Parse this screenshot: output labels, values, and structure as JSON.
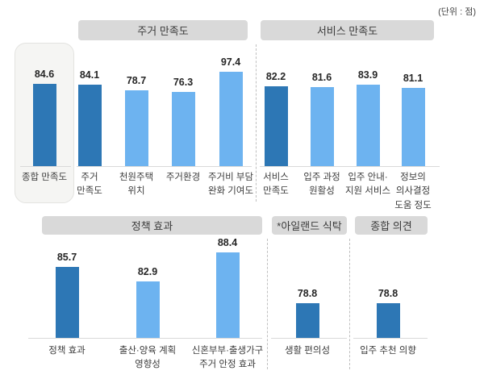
{
  "unit_note": "(단위 : 점)",
  "colors": {
    "bar_dark": "#2d77b5",
    "bar_light": "#6db3f0",
    "header_bg": "#d9d9d9",
    "header_text": "#3b3b3b",
    "baseline": "#d9d9d9",
    "dashed_separator": "#c0c0c0",
    "highlight_bg": "#f5f5f3",
    "highlight_border": "#e3e3e0"
  },
  "chart_data": {
    "type": "bar",
    "title": "",
    "unit": "(단위 : 점)",
    "grid": false,
    "axes_visible": false,
    "value_labels_position": "above-bars",
    "rows": [
      {
        "groups": [
          {
            "header": "",
            "highlighted": true,
            "bars": [
              {
                "label": "종합 만족도",
                "value": 84.6,
                "emphasis": true
              }
            ]
          },
          {
            "header": "주거 만족도",
            "bars": [
              {
                "label": "주거\n만족도",
                "value": 84.1,
                "emphasis": true
              },
              {
                "label": "천원주택\n위치",
                "value": 78.7,
                "emphasis": false
              },
              {
                "label": "주거환경",
                "value": 76.3,
                "emphasis": false
              },
              {
                "label": "주거비 부담\n완화 기여도",
                "value": 97.4,
                "emphasis": false
              }
            ]
          },
          {
            "header": "서비스 만족도",
            "bars": [
              {
                "label": "서비스\n만족도",
                "value": 82.2,
                "emphasis": true
              },
              {
                "label": "입주 과정\n원활성",
                "value": 81.6,
                "emphasis": false
              },
              {
                "label": "입주 안내·\n지원 서비스",
                "value": 83.9,
                "emphasis": false
              },
              {
                "label": "정보의\n의사결정\n도움 정도",
                "value": 81.1,
                "emphasis": false
              }
            ]
          }
        ]
      },
      {
        "groups": [
          {
            "header": "정책 효과",
            "bars": [
              {
                "label": "정책 효과",
                "value": 85.7,
                "emphasis": true
              },
              {
                "label": "출산·양육 계획\n영향성",
                "value": 82.9,
                "emphasis": false
              },
              {
                "label": "신혼부부·출생가구\n주거 안정 효과",
                "value": 88.4,
                "emphasis": false
              }
            ]
          },
          {
            "header": "*아일랜드 식탁",
            "bars": [
              {
                "label": "생활 편의성",
                "value": 78.8,
                "emphasis": true
              }
            ]
          },
          {
            "header": "종합 의견",
            "bars": [
              {
                "label": "입주 추천 의향",
                "value": 78.8,
                "emphasis": true
              }
            ]
          }
        ]
      }
    ]
  }
}
